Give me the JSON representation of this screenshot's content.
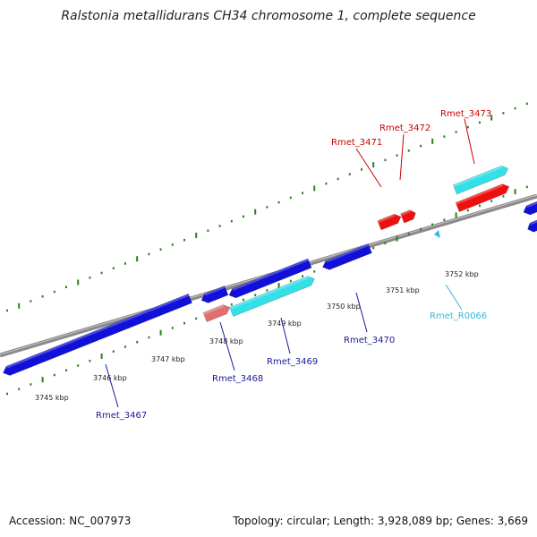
{
  "title": "Ralstonia metallidurans CH34 chromosome 1, complete sequence",
  "footer": {
    "accession": "Accession: NC_007973",
    "topology": "Topology: circular; Length: 3,928,089 bp; Genes: 3,669"
  },
  "colors": {
    "backbone": "#8a8a8a",
    "tick": "#2e7d1e",
    "gene_forward": "#1010d8",
    "gene_reverse": "#ee1010",
    "gene_highlight": "#33e0e8",
    "pseudogene": "#e07070",
    "rna": "#33b8e0",
    "label_blue": "#1a1a9a",
    "label_red": "#cc0000",
    "label_rna": "#33b8e0"
  },
  "scale_labels": [
    "3745 kbp",
    "3746 kbp",
    "3747 kbp",
    "3748 kbp",
    "3749 kbp",
    "3750 kbp",
    "3751 kbp",
    "3752 kbp"
  ],
  "genes": [
    {
      "name": "Rmet_3467",
      "color_role": "label_blue"
    },
    {
      "name": "Rmet_3468",
      "color_role": "label_blue"
    },
    {
      "name": "Rmet_3469",
      "color_role": "label_blue"
    },
    {
      "name": "Rmet_3470",
      "color_role": "label_blue"
    },
    {
      "name": "Rmet_R0066",
      "color_role": "label_rna"
    },
    {
      "name": "Rmet_3471",
      "color_role": "label_red"
    },
    {
      "name": "Rmet_3472",
      "color_role": "label_red"
    },
    {
      "name": "Rmet_3473",
      "color_role": "label_red"
    }
  ]
}
